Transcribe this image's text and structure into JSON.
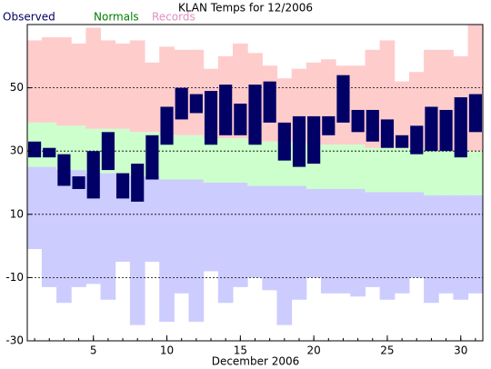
{
  "chart_data": {
    "type": "range-bar",
    "title": "KLAN Temps for 12/2006",
    "x_label": "December 2006",
    "x": [
      1,
      2,
      3,
      4,
      5,
      6,
      7,
      8,
      9,
      10,
      11,
      12,
      13,
      14,
      15,
      16,
      17,
      18,
      19,
      20,
      21,
      22,
      23,
      24,
      25,
      26,
      27,
      28,
      29,
      30,
      31
    ],
    "xlim": [
      0.5,
      31.5
    ],
    "xticks": [
      5,
      10,
      15,
      20,
      25,
      30
    ],
    "ylim": [
      -30,
      70
    ],
    "yticks": [
      -30,
      -10,
      10,
      30,
      50
    ],
    "grid": true,
    "series": [
      {
        "name": "Observed",
        "color": "#000066",
        "label_color": "#000066",
        "high": [
          33,
          31,
          29,
          22,
          30,
          36,
          23,
          26,
          35,
          44,
          50,
          48,
          49,
          51,
          45,
          51,
          52,
          39,
          41,
          41,
          41,
          54,
          43,
          43,
          40,
          35,
          38,
          44,
          43,
          47,
          48
        ],
        "low": [
          28,
          28,
          19,
          18,
          15,
          24,
          15,
          14,
          21,
          32,
          40,
          42,
          32,
          35,
          35,
          32,
          39,
          27,
          25,
          26,
          35,
          39,
          36,
          33,
          31,
          31,
          29,
          30,
          30,
          28,
          36
        ]
      },
      {
        "name": "Normals",
        "color": "#ccffcc",
        "label_color": "#008000",
        "high": [
          39,
          39,
          38,
          38,
          37,
          37,
          37,
          36,
          36,
          35,
          35,
          35,
          34,
          34,
          34,
          33,
          33,
          33,
          33,
          32,
          32,
          32,
          32,
          31,
          31,
          31,
          31,
          30,
          30,
          30,
          30
        ],
        "low": [
          25,
          25,
          24,
          24,
          23,
          23,
          23,
          22,
          22,
          21,
          21,
          21,
          20,
          20,
          20,
          19,
          19,
          19,
          19,
          18,
          18,
          18,
          18,
          17,
          17,
          17,
          17,
          16,
          16,
          16,
          16
        ]
      },
      {
        "name": "Records",
        "color": "#ffcccc",
        "low_color": "#ccccff",
        "label_color": "#e090c0",
        "high": [
          65,
          66,
          66,
          64,
          69,
          65,
          64,
          65,
          58,
          63,
          62,
          62,
          56,
          60,
          64,
          61,
          57,
          53,
          56,
          58,
          59,
          57,
          57,
          62,
          65,
          52,
          55,
          62,
          62,
          60,
          70
        ],
        "low": [
          -1,
          -13,
          -18,
          -13,
          -12,
          -17,
          -5,
          -25,
          -5,
          -24,
          -15,
          -24,
          -8,
          -18,
          -13,
          -10,
          -14,
          -25,
          -17,
          -10,
          -15,
          -15,
          -16,
          -13,
          -17,
          -15,
          -10,
          -18,
          -15,
          -17,
          -15
        ]
      }
    ]
  }
}
